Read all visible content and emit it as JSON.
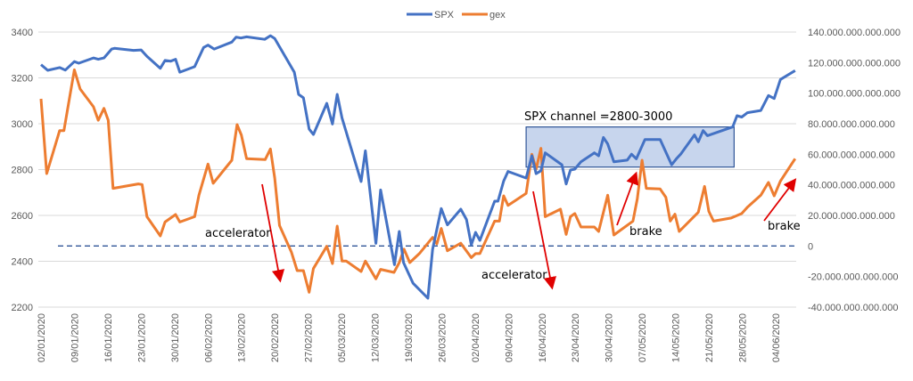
{
  "chart_data": {
    "type": "line",
    "title": "",
    "x_unit": "days since 02/01/2020",
    "x_tick_labels": [
      "02/01/2020",
      "09/01/2020",
      "16/01/2020",
      "23/01/2020",
      "30/01/2020",
      "06/02/2020",
      "13/02/2020",
      "20/02/2020",
      "27/02/2020",
      "05/03/2020",
      "12/03/2020",
      "19/03/2020",
      "26/03/2020",
      "02/04/2020",
      "09/04/2020",
      "16/04/2020",
      "23/04/2020",
      "30/04/2020",
      "07/05/2020",
      "14/05/2020",
      "21/05/2020",
      "28/05/2020",
      "04/06/2020"
    ],
    "x_tick_step_days": 7,
    "xlim": [
      0,
      158
    ],
    "y_left": {
      "ylim": [
        2200,
        3400
      ],
      "ticks": [
        "2200",
        "2400",
        "2600",
        "2800",
        "3000",
        "3200",
        "3400"
      ]
    },
    "y_right": {
      "ylim": [
        -40000000000000.0,
        140000000000000.0
      ],
      "ticks": [
        "-40.000.000.000.000",
        "-20.000.000.000.000",
        "0",
        "20.000.000.000.000",
        "40.000.000.000.000",
        "60.000.000.000.000",
        "80.000.000.000.000",
        "100.000.000.000.000",
        "120.000.000.000.000",
        "140.000.000.000.000"
      ]
    },
    "grid": true,
    "legend": {
      "placement": "top-center",
      "entries": [
        "SPX",
        "gex"
      ]
    },
    "series": [
      {
        "name": "SPX",
        "axis": "left",
        "color": "#4472C4",
        "points": [
          [
            0,
            3258
          ],
          [
            1.4,
            3233
          ],
          [
            3.9,
            3245
          ],
          [
            5.1,
            3234
          ],
          [
            7,
            3271
          ],
          [
            7.9,
            3264
          ],
          [
            11,
            3287
          ],
          [
            12,
            3281
          ],
          [
            13.2,
            3287
          ],
          [
            14.8,
            3326
          ],
          [
            15.4,
            3329
          ],
          [
            19.4,
            3320
          ],
          [
            21,
            3322
          ],
          [
            22.2,
            3294
          ],
          [
            25,
            3242
          ],
          [
            26,
            3276
          ],
          [
            27.2,
            3273
          ],
          [
            28.2,
            3281
          ],
          [
            29.1,
            3225
          ],
          [
            32.2,
            3249
          ],
          [
            34.1,
            3333
          ],
          [
            35,
            3343
          ],
          [
            36.3,
            3326
          ],
          [
            40,
            3356
          ],
          [
            40.9,
            3378
          ],
          [
            41.9,
            3374
          ],
          [
            43.1,
            3379
          ],
          [
            46.9,
            3368
          ],
          [
            48.1,
            3384
          ],
          [
            49,
            3372
          ],
          [
            53.1,
            3225
          ],
          [
            54,
            3128
          ],
          [
            55,
            3113
          ],
          [
            56.2,
            2977
          ],
          [
            57.1,
            2953
          ],
          [
            59.9,
            3089
          ],
          [
            61.1,
            2999
          ],
          [
            62.1,
            3128
          ],
          [
            63.1,
            3025
          ],
          [
            67.1,
            2748
          ],
          [
            68,
            2882
          ],
          [
            70.2,
            2478
          ],
          [
            71.2,
            2711
          ],
          [
            74.1,
            2385
          ],
          [
            75.1,
            2530
          ],
          [
            76,
            2394
          ],
          [
            78,
            2304
          ],
          [
            81.1,
            2239
          ],
          [
            82.1,
            2452
          ],
          [
            83.9,
            2630
          ],
          [
            85.2,
            2559
          ],
          [
            88,
            2627
          ],
          [
            89.2,
            2582
          ],
          [
            90.2,
            2472
          ],
          [
            91.1,
            2526
          ],
          [
            92,
            2491
          ],
          [
            95.1,
            2662
          ],
          [
            95.8,
            2662
          ],
          [
            97,
            2750
          ],
          [
            97.9,
            2792
          ],
          [
            101.7,
            2763
          ],
          [
            102.9,
            2860
          ],
          [
            103.8,
            2782
          ],
          [
            104.8,
            2795
          ],
          [
            105.7,
            2873
          ],
          [
            109.2,
            2821
          ],
          [
            110.1,
            2737
          ],
          [
            111,
            2798
          ],
          [
            111.9,
            2802
          ],
          [
            113.2,
            2834
          ],
          [
            116,
            2873
          ],
          [
            116.9,
            2860
          ],
          [
            117.9,
            2940
          ],
          [
            118.8,
            2912
          ],
          [
            120.1,
            2834
          ],
          [
            122.9,
            2841
          ],
          [
            123.8,
            2867
          ],
          [
            124.8,
            2847
          ],
          [
            126.6,
            2931
          ],
          [
            129.8,
            2931
          ],
          [
            132.2,
            2821
          ],
          [
            133.2,
            2847
          ],
          [
            134.1,
            2867
          ],
          [
            137,
            2951
          ],
          [
            137.8,
            2921
          ],
          [
            138.8,
            2970
          ],
          [
            139.7,
            2948
          ],
          [
            145,
            2986
          ],
          [
            145.9,
            3035
          ],
          [
            146.9,
            3029
          ],
          [
            148.1,
            3048
          ],
          [
            150.9,
            3058
          ],
          [
            152.5,
            3123
          ],
          [
            153.7,
            3110
          ],
          [
            155,
            3193
          ],
          [
            158.1,
            3232
          ]
        ]
      },
      {
        "name": "gex",
        "axis": "right",
        "color": "#ED7D31",
        "points": [
          [
            0,
            96300000000000.0
          ],
          [
            1.2,
            47400000000000.0
          ],
          [
            3.9,
            75500000000000.0
          ],
          [
            4.8,
            75500000000000.0
          ],
          [
            7,
            115300000000000.0
          ],
          [
            8.2,
            102700000000000.0
          ],
          [
            11,
            91100000000000.0
          ],
          [
            12,
            82300000000000.0
          ],
          [
            13.2,
            90100000000000.0
          ],
          [
            14.1,
            82300000000000.0
          ],
          [
            15.1,
            37700000000000.0
          ],
          [
            20.4,
            40600000000000.0
          ],
          [
            21.2,
            40200000000000.0
          ],
          [
            22.2,
            19200000000000.0
          ],
          [
            25,
            6600000000000.0
          ],
          [
            26,
            15700000000000.0
          ],
          [
            28.2,
            20600000000000.0
          ],
          [
            29.1,
            15700000000000.0
          ],
          [
            32.2,
            19200000000000.0
          ],
          [
            33.1,
            33200000000000.0
          ],
          [
            35,
            53600000000000.0
          ],
          [
            36.1,
            41000000000000.0
          ],
          [
            40,
            56100000000000.0
          ],
          [
            41.1,
            79400000000000.0
          ],
          [
            42,
            72600000000000.0
          ],
          [
            43.1,
            57100000000000.0
          ],
          [
            47,
            56500000000000.0
          ],
          [
            48.1,
            63500000000000.0
          ],
          [
            49,
            44500000000000.0
          ],
          [
            50,
            13400000000000.0
          ],
          [
            52.5,
            -4100000000000.0
          ],
          [
            53.7,
            -16100000000000.0
          ],
          [
            55,
            -16100000000000.0
          ],
          [
            56.2,
            -30300000000000.0
          ],
          [
            57.1,
            -14800000000000.0
          ],
          [
            59.9,
            -200000000000.0
          ],
          [
            61.1,
            -11500000000000.0
          ],
          [
            62.1,
            13000000000000.0
          ],
          [
            63.1,
            -9900000000000.0
          ],
          [
            64,
            -9900000000000.0
          ],
          [
            67.1,
            -16700000000000.0
          ],
          [
            68,
            -9900000000000.0
          ],
          [
            70.2,
            -21500000000000.0
          ],
          [
            71.2,
            -15300000000000.0
          ],
          [
            74,
            -17300000000000.0
          ],
          [
            75.1,
            -10900000000000.0
          ],
          [
            76.1,
            -2100000000000.0
          ],
          [
            77.3,
            -10900000000000.0
          ],
          [
            79.3,
            -5000000000000.0
          ],
          [
            82.1,
            5600000000000.0
          ],
          [
            83,
            1400000000000.0
          ],
          [
            83.9,
            11500000000000.0
          ],
          [
            85.2,
            -3100000000000.0
          ],
          [
            88,
            1800000000000.0
          ],
          [
            90.2,
            -7600000000000.0
          ],
          [
            91.1,
            -5000000000000.0
          ],
          [
            92,
            -5000000000000.0
          ],
          [
            95.1,
            16300000000000.0
          ],
          [
            96.1,
            16300000000000.0
          ],
          [
            97,
            32800000000000.0
          ],
          [
            97.9,
            26600000000000.0
          ],
          [
            101.7,
            34400000000000.0
          ],
          [
            102.9,
            60000000000000.0
          ],
          [
            103.8,
            50300000000000.0
          ],
          [
            104.8,
            63900000000000.0
          ],
          [
            105.7,
            19200000000000.0
          ],
          [
            108.9,
            24100000000000.0
          ],
          [
            110.1,
            7600000000000.0
          ],
          [
            111,
            19200000000000.0
          ],
          [
            111.9,
            21200000000000.0
          ],
          [
            113.2,
            12400000000000.0
          ],
          [
            116,
            12400000000000.0
          ],
          [
            116.9,
            9500000000000.0
          ],
          [
            118.8,
            33200000000000.0
          ],
          [
            120.1,
            7200000000000.0
          ],
          [
            124.1,
            16300000000000.0
          ],
          [
            125,
            30900000000000.0
          ],
          [
            126,
            56100000000000.0
          ],
          [
            126.9,
            37700000000000.0
          ],
          [
            129.8,
            37300000000000.0
          ],
          [
            131,
            31900000000000.0
          ],
          [
            131.9,
            16300000000000.0
          ],
          [
            132.9,
            20800000000000.0
          ],
          [
            133.8,
            9500000000000.0
          ],
          [
            137.8,
            22100000000000.0
          ],
          [
            139.1,
            39000000000000.0
          ],
          [
            140,
            22700000000000.0
          ],
          [
            141,
            16300000000000.0
          ],
          [
            144.7,
            18300000000000.0
          ],
          [
            146.9,
            21200000000000.0
          ],
          [
            148.1,
            25400000000000.0
          ],
          [
            150.9,
            33200000000000.0
          ],
          [
            152.5,
            41600000000000.0
          ],
          [
            153.7,
            32800000000000.0
          ],
          [
            155,
            42500000000000.0
          ],
          [
            158.1,
            57100000000000.0
          ]
        ]
      }
    ],
    "reference_line": {
      "axis": "right",
      "value": 0,
      "style": "dashed",
      "color": "#2F5597"
    },
    "channel_box": {
      "label": "SPX channel =2800-3000",
      "x_range_days": [
        101.7,
        145.3
      ],
      "y_range": [
        2811,
        2986
      ],
      "fill": "#B4C7E7",
      "stroke": "#2F5597"
    },
    "annotations": [
      {
        "text": "accelerator",
        "direction": "down"
      },
      {
        "text": "accelerator",
        "direction": "down"
      },
      {
        "text": "brake",
        "direction": "up"
      },
      {
        "text": "brake",
        "direction": "up"
      }
    ],
    "arrow_color": "#E00000"
  }
}
